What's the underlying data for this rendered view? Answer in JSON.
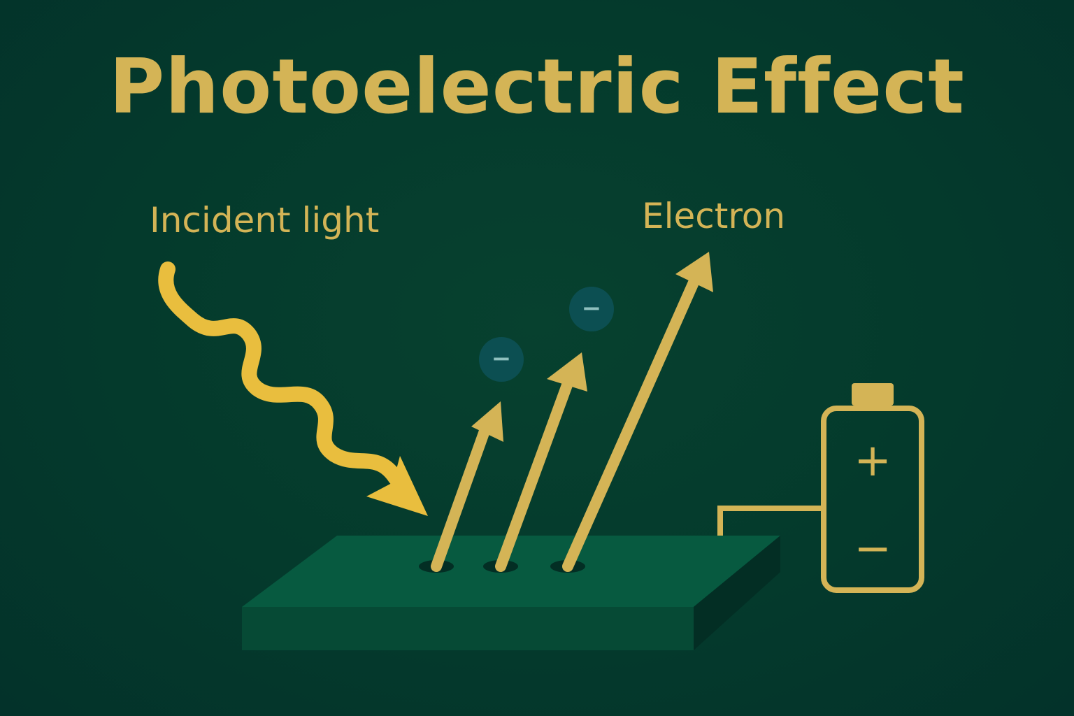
{
  "title": "Photoelectric Effect",
  "labels": {
    "incident_light": "Incident light",
    "electron": "Electron"
  },
  "electron_charge_symbol": "−",
  "battery": {
    "positive_symbol": "+",
    "negative_symbol": "−"
  },
  "colors": {
    "background": "#04382d",
    "gold": "#d4b456",
    "light_wave": "#e9be3e",
    "plate_top": "#075a40",
    "plate_front": "#064a35",
    "plate_side": "#032e24",
    "electron_fill": "#0c4f52",
    "electron_sign": "#8fc0bf"
  }
}
